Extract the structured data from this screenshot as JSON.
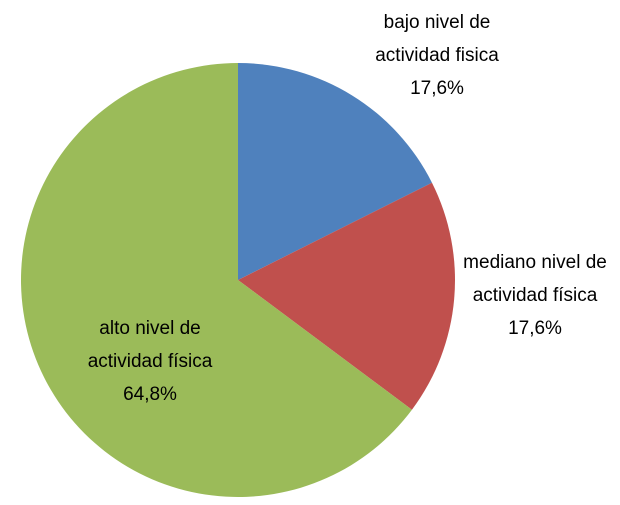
{
  "chart_data": {
    "type": "pie",
    "categories": [
      "bajo nivel de actividad fisica",
      "mediano nivel de actividad física",
      "alto nivel de actividad física"
    ],
    "values": [
      17.6,
      17.6,
      64.8
    ],
    "value_labels": [
      "17,6%",
      "17,6%",
      "64,8%"
    ],
    "colors": [
      "#4f81bd",
      "#c0504d",
      "#9bbb59"
    ]
  }
}
